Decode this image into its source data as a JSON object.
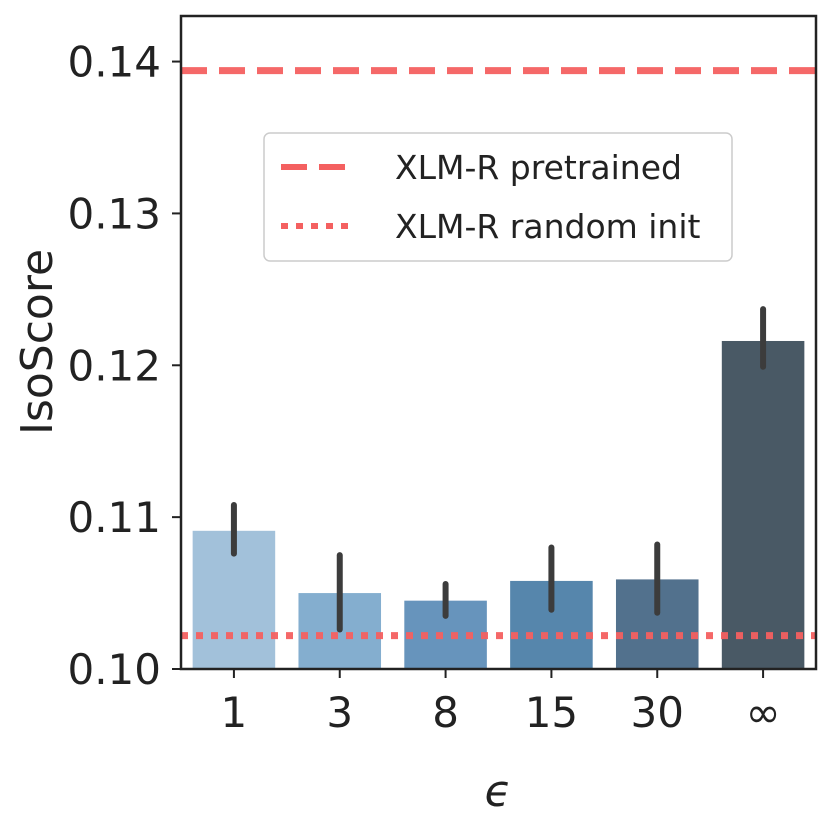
{
  "chart_data": {
    "type": "bar",
    "title": "",
    "xlabel": "ϵ",
    "ylabel": "IsoScore",
    "categories": [
      "1",
      "3",
      "8",
      "15",
      "30",
      "∞"
    ],
    "values": [
      0.1091,
      0.105,
      0.1045,
      0.1058,
      0.1059,
      0.1216
    ],
    "errors_low": [
      0.1076,
      0.1026,
      0.1035,
      0.1039,
      0.1037,
      0.1199
    ],
    "errors_high": [
      0.1108,
      0.1075,
      0.1056,
      0.108,
      0.1082,
      0.1237
    ],
    "colors": [
      "#a2c1da",
      "#84aecf",
      "#6794bc",
      "#5686ac",
      "#52718d",
      "#495965"
    ],
    "ylim": [
      0.1,
      0.143
    ],
    "yticks": [
      0.1,
      0.11,
      0.12,
      0.13,
      0.14
    ],
    "ytick_labels": [
      "0.10",
      "0.11",
      "0.12",
      "0.13",
      "0.14"
    ],
    "grid": false,
    "reference_lines": [
      {
        "name": "XLM-R pretrained",
        "value": 0.1394,
        "style": "dashed",
        "color": "#f46060"
      },
      {
        "name": "XLM-R random init",
        "value": 0.1022,
        "style": "dotted",
        "color": "#f46060"
      }
    ],
    "legend": {
      "position": "upper-center",
      "entries": [
        "XLM-R pretrained",
        "XLM-R random init"
      ]
    }
  }
}
